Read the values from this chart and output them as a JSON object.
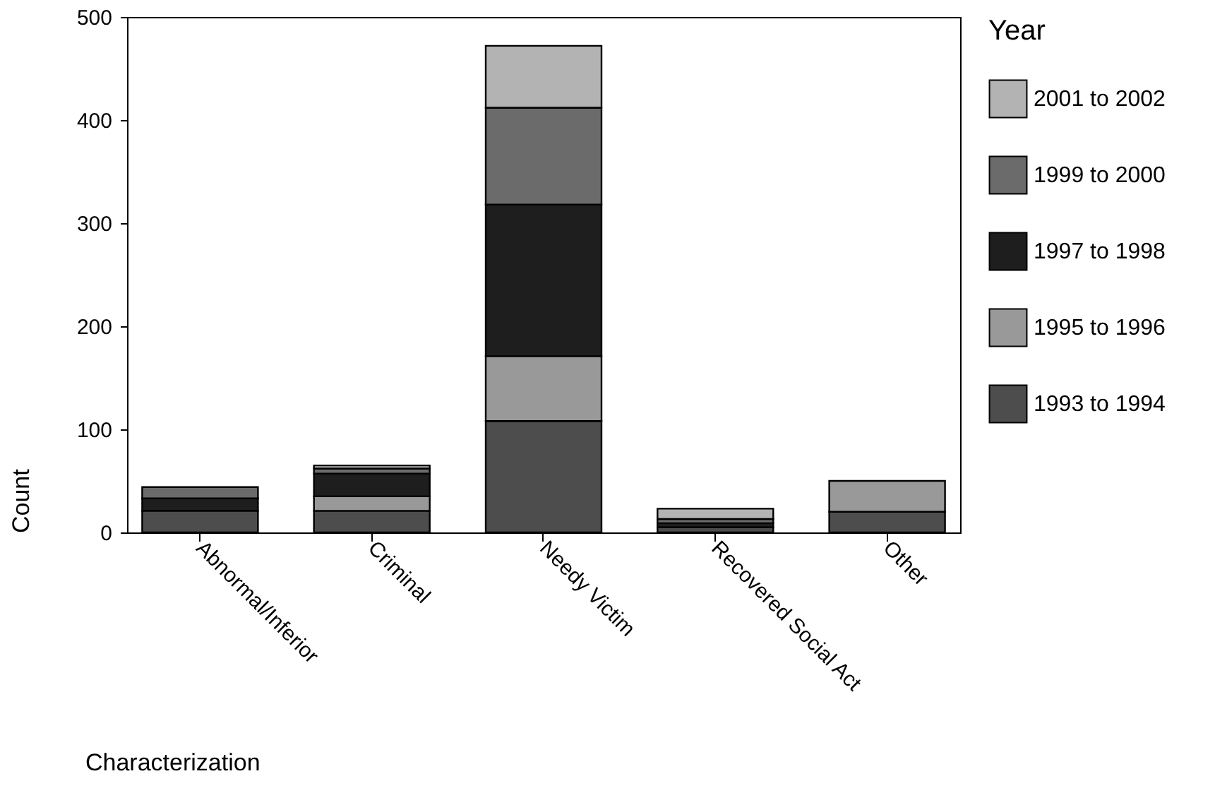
{
  "chart_data": {
    "type": "bar",
    "stacked": true,
    "xlabel": "Characterization",
    "ylabel": "Count",
    "legend_title": "Year",
    "categories": [
      "Abnormal/Inferior",
      "Criminal",
      "Needy Victim",
      "Recovered Social Act",
      "Other"
    ],
    "series": [
      {
        "name": "1993 to 1994",
        "color": "#4d4d4d",
        "values": [
          21,
          21,
          108,
          5,
          20
        ]
      },
      {
        "name": "1995 to 1996",
        "color": "#999999",
        "values": [
          0,
          14,
          63,
          0,
          30
        ]
      },
      {
        "name": "1997 to 1998",
        "color": "#1e1e1e",
        "values": [
          12,
          22,
          147,
          4,
          0
        ]
      },
      {
        "name": "1999 to 2000",
        "color": "#6b6b6b",
        "values": [
          11,
          5,
          94,
          4,
          0
        ]
      },
      {
        "name": "2001 to 2002",
        "color": "#b3b3b3",
        "values": [
          0,
          3,
          60,
          10,
          0
        ]
      }
    ],
    "ylim": [
      0,
      500
    ],
    "yticks": [
      0,
      100,
      200,
      300,
      400,
      500
    ],
    "grid": false,
    "legend": "right"
  }
}
